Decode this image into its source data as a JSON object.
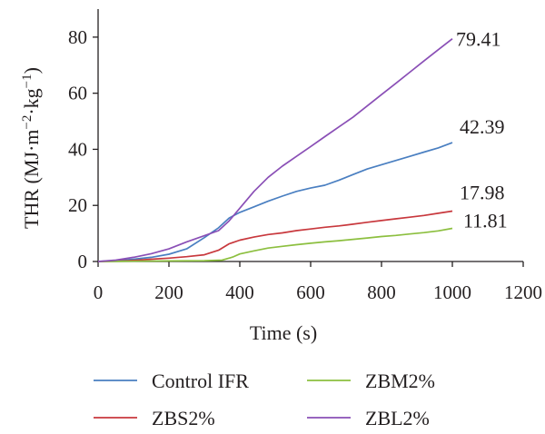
{
  "chart_data": {
    "type": "line",
    "title": "",
    "xlabel": "Time (s)",
    "ylabel": {
      "base": "THR (MJ·m",
      "exp1": "−2",
      "mid": "·kg",
      "exp2": "−1",
      "end": ")"
    },
    "xlim": [
      0,
      1200
    ],
    "ylim": [
      0,
      90
    ],
    "xticks": [
      0,
      200,
      400,
      600,
      800,
      1000,
      1200
    ],
    "yticks": [
      0,
      20,
      40,
      60,
      80
    ],
    "grid": false,
    "legend_position": "bottom",
    "series": [
      {
        "name": "Control IFR",
        "color": "#4a7fc1",
        "end_label": "42.39",
        "points": [
          [
            0,
            0
          ],
          [
            50,
            0.3
          ],
          [
            100,
            0.8
          ],
          [
            150,
            1.5
          ],
          [
            200,
            2.6
          ],
          [
            250,
            4.5
          ],
          [
            300,
            8.5
          ],
          [
            340,
            12
          ],
          [
            370,
            15.5
          ],
          [
            400,
            17.5
          ],
          [
            440,
            19.5
          ],
          [
            480,
            21.5
          ],
          [
            520,
            23.3
          ],
          [
            560,
            25
          ],
          [
            600,
            26.2
          ],
          [
            640,
            27.2
          ],
          [
            680,
            29
          ],
          [
            720,
            31
          ],
          [
            760,
            33
          ],
          [
            800,
            34.5
          ],
          [
            840,
            36
          ],
          [
            880,
            37.5
          ],
          [
            920,
            39
          ],
          [
            960,
            40.5
          ],
          [
            1000,
            42.39
          ]
        ]
      },
      {
        "name": "ZBS2%",
        "color": "#c8383d",
        "end_label": "17.98",
        "points": [
          [
            0,
            0
          ],
          [
            50,
            0.1
          ],
          [
            100,
            0.4
          ],
          [
            150,
            0.8
          ],
          [
            200,
            1.2
          ],
          [
            250,
            1.7
          ],
          [
            300,
            2.4
          ],
          [
            340,
            4
          ],
          [
            370,
            6.3
          ],
          [
            400,
            7.6
          ],
          [
            440,
            8.7
          ],
          [
            480,
            9.6
          ],
          [
            520,
            10.2
          ],
          [
            560,
            11
          ],
          [
            600,
            11.6
          ],
          [
            640,
            12.2
          ],
          [
            680,
            12.7
          ],
          [
            720,
            13.3
          ],
          [
            760,
            14
          ],
          [
            800,
            14.6
          ],
          [
            840,
            15.2
          ],
          [
            880,
            15.8
          ],
          [
            920,
            16.4
          ],
          [
            960,
            17.2
          ],
          [
            1000,
            17.98
          ]
        ]
      },
      {
        "name": "ZBM2%",
        "color": "#8cbf3f",
        "end_label": "11.81",
        "points": [
          [
            0,
            0
          ],
          [
            100,
            0.1
          ],
          [
            200,
            0.2
          ],
          [
            300,
            0.3
          ],
          [
            350,
            0.5
          ],
          [
            380,
            1.6
          ],
          [
            400,
            2.7
          ],
          [
            440,
            3.8
          ],
          [
            480,
            4.8
          ],
          [
            520,
            5.4
          ],
          [
            560,
            6
          ],
          [
            600,
            6.5
          ],
          [
            640,
            7
          ],
          [
            680,
            7.4
          ],
          [
            720,
            7.9
          ],
          [
            760,
            8.4
          ],
          [
            800,
            8.9
          ],
          [
            840,
            9.3
          ],
          [
            880,
            9.8
          ],
          [
            920,
            10.3
          ],
          [
            960,
            10.9
          ],
          [
            1000,
            11.81
          ]
        ]
      },
      {
        "name": "ZBL2%",
        "color": "#8a4fb6",
        "end_label": "79.41",
        "points": [
          [
            0,
            0
          ],
          [
            50,
            0.5
          ],
          [
            100,
            1.5
          ],
          [
            150,
            2.8
          ],
          [
            200,
            4.5
          ],
          [
            250,
            7
          ],
          [
            300,
            9.2
          ],
          [
            340,
            11
          ],
          [
            370,
            14.5
          ],
          [
            400,
            19
          ],
          [
            440,
            25
          ],
          [
            480,
            30
          ],
          [
            520,
            34
          ],
          [
            560,
            37.5
          ],
          [
            600,
            41
          ],
          [
            640,
            44.5
          ],
          [
            680,
            48
          ],
          [
            720,
            51.5
          ],
          [
            760,
            55.5
          ],
          [
            800,
            59.5
          ],
          [
            840,
            63.5
          ],
          [
            880,
            67.5
          ],
          [
            920,
            71.5
          ],
          [
            960,
            75.5
          ],
          [
            1000,
            79.41
          ]
        ]
      }
    ]
  }
}
